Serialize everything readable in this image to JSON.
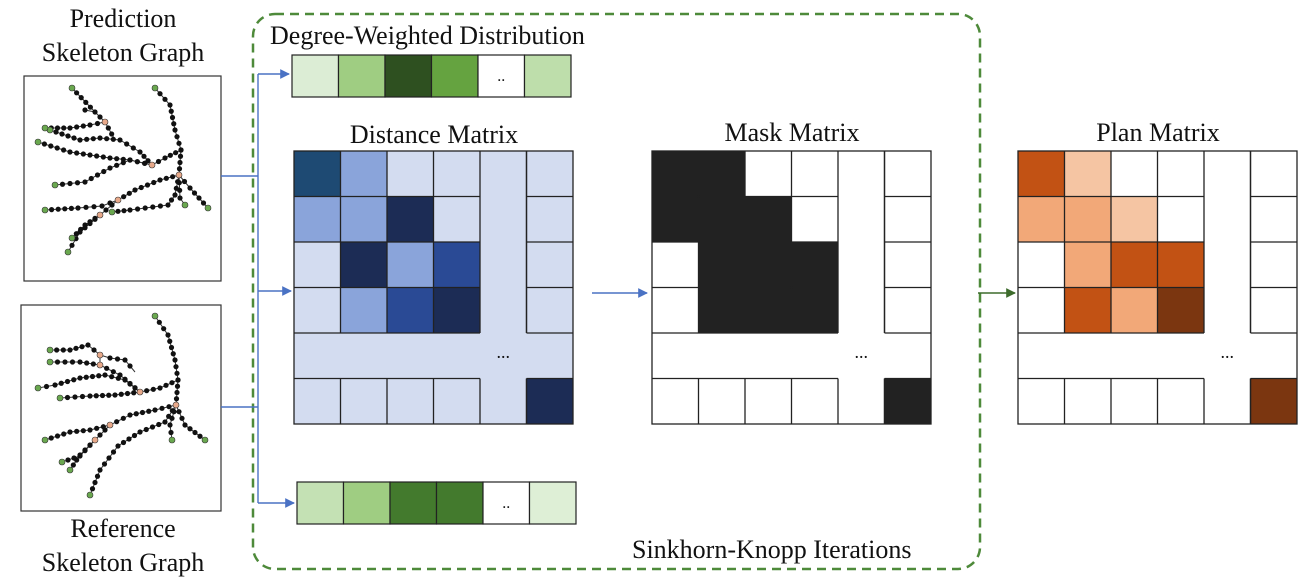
{
  "labels": {
    "prediction_title_line1": "Prediction",
    "prediction_title_line2": "Skeleton Graph",
    "reference_title_line1": "Reference",
    "reference_title_line2": "Skeleton Graph",
    "degree_weighted": "Degree-Weighted Distribution",
    "distance_matrix": "Distance Matrix",
    "mask_matrix": "Mask Matrix",
    "plan_matrix": "Plan Matrix",
    "sinkhorn": "Sinkhorn-Knopp Iterations",
    "ellipsis_vector": "..",
    "ellipsis_matrix": "..."
  },
  "colors": {
    "dashed_frame": "#4e8a3a",
    "arrow_blue": "#4a72c4",
    "arrow_green": "#3d6b2c",
    "graph_node": "#111111",
    "graph_junction": "#e8a98a",
    "graph_leaf": "#6aa84f"
  },
  "top_vector": [
    "#dcedd5",
    "#9fcd82",
    "#2e5020",
    "#65a340",
    "#ffffff",
    "#bedeab"
  ],
  "bottom_vector": [
    "#c4e1b4",
    "#9fcd82",
    "#437a2d",
    "#437a2d",
    "#ffffff",
    "#deefd6"
  ],
  "distance_matrix": [
    [
      "#1e4a73",
      "#8aa4da",
      "#d3dcf0",
      "#d3dcf0",
      "#d3dcf0",
      "#d3dcf0"
    ],
    [
      "#8aa4da",
      "#8aa4da",
      "#1c2c55",
      "#d3dcf0",
      "#d3dcf0",
      "#d3dcf0"
    ],
    [
      "#d3dcf0",
      "#1c2c55",
      "#8aa4da",
      "#2a4a95",
      "#d3dcf0",
      "#d3dcf0"
    ],
    [
      "#d3dcf0",
      "#8aa4da",
      "#2a4a95",
      "#1c2c55",
      "#d3dcf0",
      "#d3dcf0"
    ],
    [
      "#d3dcf0",
      "#d3dcf0",
      "#d3dcf0",
      "#d3dcf0",
      "#d3dcf0",
      "#d3dcf0"
    ],
    [
      "#d3dcf0",
      "#d3dcf0",
      "#d3dcf0",
      "#d3dcf0",
      "#d3dcf0",
      "#1c2c55"
    ]
  ],
  "mask_matrix": [
    [
      "#222222",
      "#222222",
      "#ffffff",
      "#ffffff",
      "#ffffff",
      "#ffffff"
    ],
    [
      "#222222",
      "#222222",
      "#222222",
      "#ffffff",
      "#ffffff",
      "#ffffff"
    ],
    [
      "#ffffff",
      "#222222",
      "#222222",
      "#222222",
      "#ffffff",
      "#ffffff"
    ],
    [
      "#ffffff",
      "#222222",
      "#222222",
      "#222222",
      "#ffffff",
      "#ffffff"
    ],
    [
      "#ffffff",
      "#ffffff",
      "#ffffff",
      "#ffffff",
      "#ffffff",
      "#ffffff"
    ],
    [
      "#ffffff",
      "#ffffff",
      "#ffffff",
      "#ffffff",
      "#ffffff",
      "#222222"
    ]
  ],
  "plan_matrix": [
    [
      "#c25214",
      "#f5c5a3",
      "#ffffff",
      "#ffffff",
      "#ffffff",
      "#ffffff"
    ],
    [
      "#f2a878",
      "#f2a878",
      "#f5c5a3",
      "#ffffff",
      "#ffffff",
      "#ffffff"
    ],
    [
      "#ffffff",
      "#f2a878",
      "#c25214",
      "#c25214",
      "#ffffff",
      "#ffffff"
    ],
    [
      "#ffffff",
      "#c25214",
      "#f2a878",
      "#7b3610",
      "#ffffff",
      "#ffffff"
    ],
    [
      "#ffffff",
      "#ffffff",
      "#ffffff",
      "#ffffff",
      "#ffffff",
      "#ffffff"
    ],
    [
      "#ffffff",
      "#ffffff",
      "#ffffff",
      "#ffffff",
      "#ffffff",
      "#7b3610"
    ]
  ]
}
